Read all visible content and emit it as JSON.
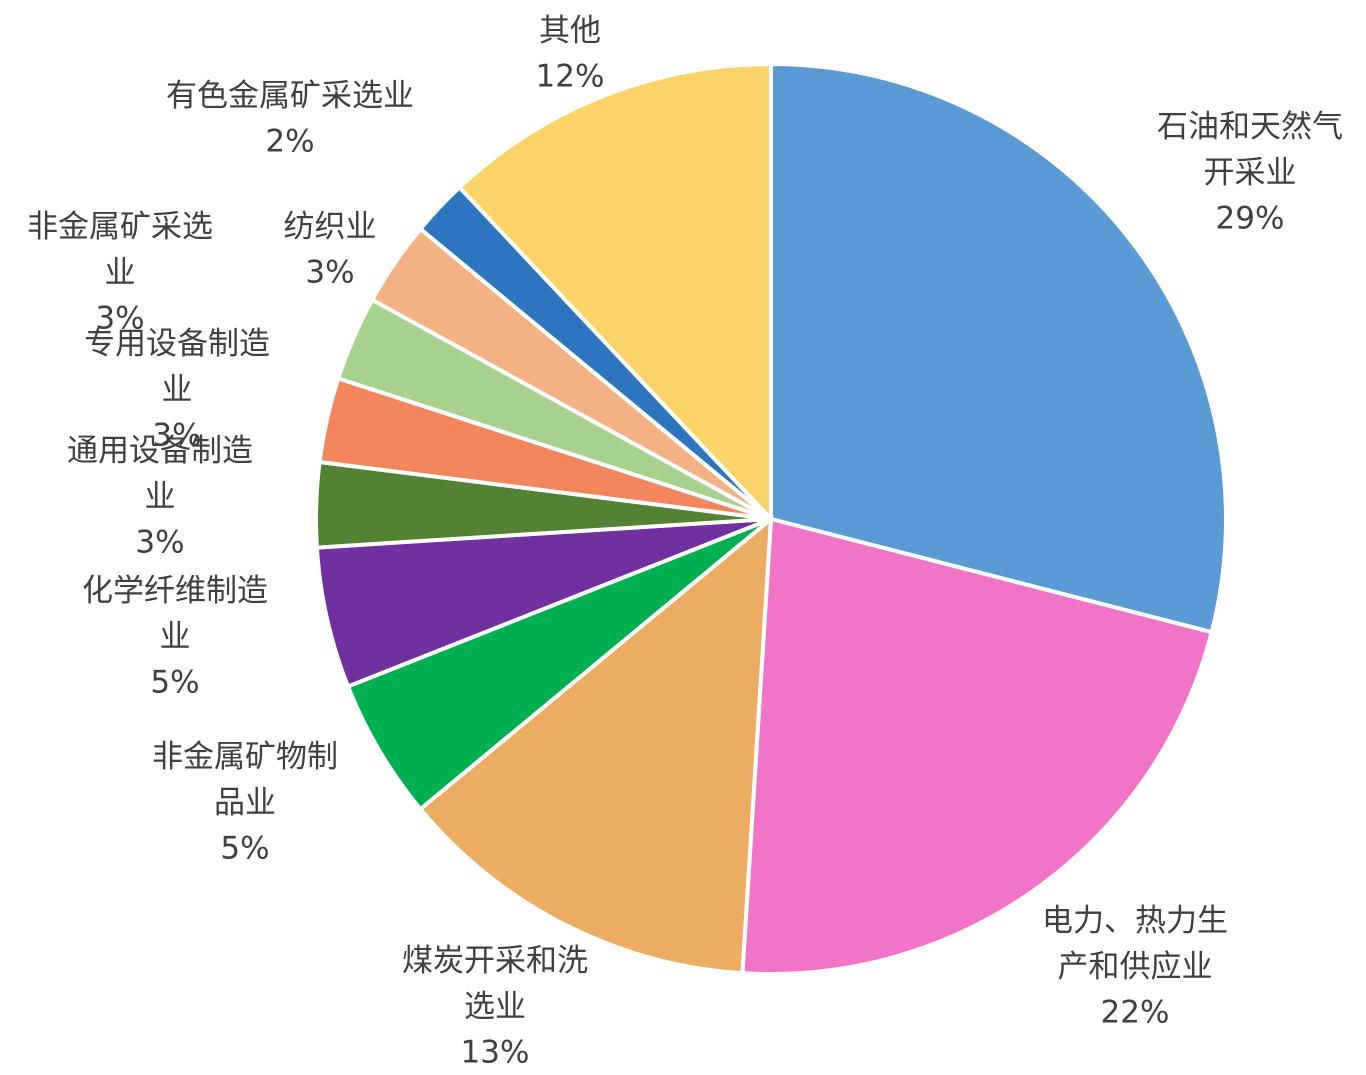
{
  "chart_data": {
    "type": "pie",
    "categories": [
      "石油和天然气开采业",
      "电力、热力生产和供应业",
      "煤炭开采和洗选业",
      "非金属矿物制品业",
      "化学纤维制造业",
      "通用设备制造业",
      "专用设备制造业",
      "非金属矿采选业",
      "纺织业",
      "有色金属矿采选业",
      "其他"
    ],
    "values": [
      29,
      22,
      13,
      5,
      5,
      3,
      3,
      3,
      3,
      2,
      12
    ],
    "value_labels": [
      "29%",
      "22%",
      "13%",
      "5%",
      "5%",
      "3%",
      "3%",
      "3%",
      "3%",
      "2%",
      "12%"
    ],
    "colors": [
      "#5b9bd5",
      "#f274c9",
      "#ecad62",
      "#00b050",
      "#7030a0",
      "#548235",
      "#f4865e",
      "#a9d18e",
      "#f4b183",
      "#2e75c0",
      "#fad467"
    ]
  }
}
